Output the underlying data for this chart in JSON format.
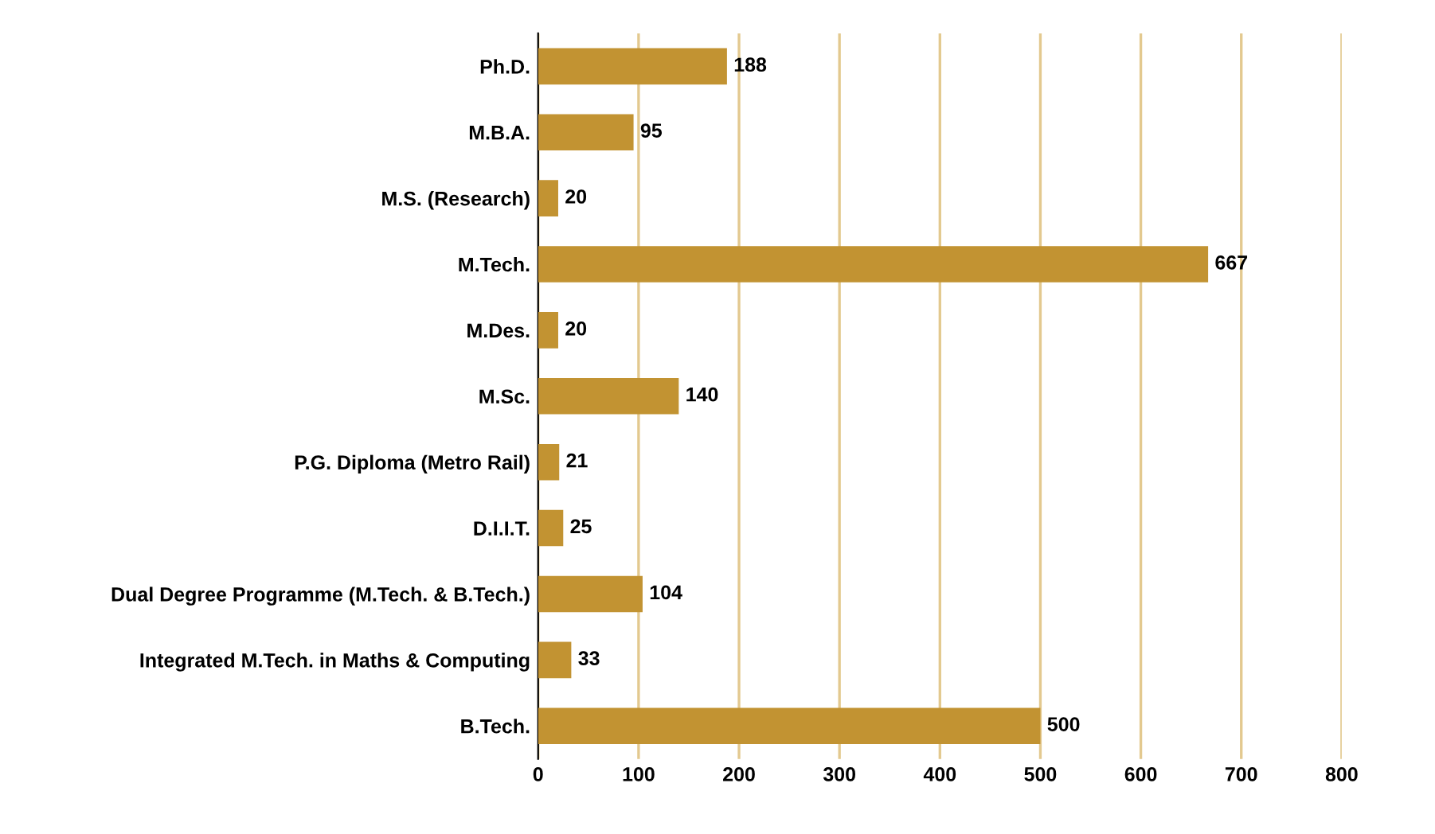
{
  "chart_data": {
    "type": "bar",
    "orientation": "horizontal",
    "categories": [
      "Ph.D.",
      "M.B.A.",
      "M.S. (Research)",
      "M.Tech.",
      "M.Des.",
      "M.Sc.",
      "P.G. Diploma (Metro Rail)",
      "D.I.I.T.",
      "Dual Degree Programme (M.Tech. & B.Tech.)",
      "Integrated M.Tech. in Maths & Computing",
      "B.Tech."
    ],
    "values": [
      188,
      95,
      20,
      667,
      20,
      140,
      21,
      25,
      104,
      33,
      500
    ],
    "color": "#c29332",
    "xlim": [
      0,
      800
    ],
    "xticks": [
      0,
      100,
      200,
      300,
      400,
      500,
      600,
      700,
      800
    ],
    "grid": "x",
    "data_labels": true
  }
}
